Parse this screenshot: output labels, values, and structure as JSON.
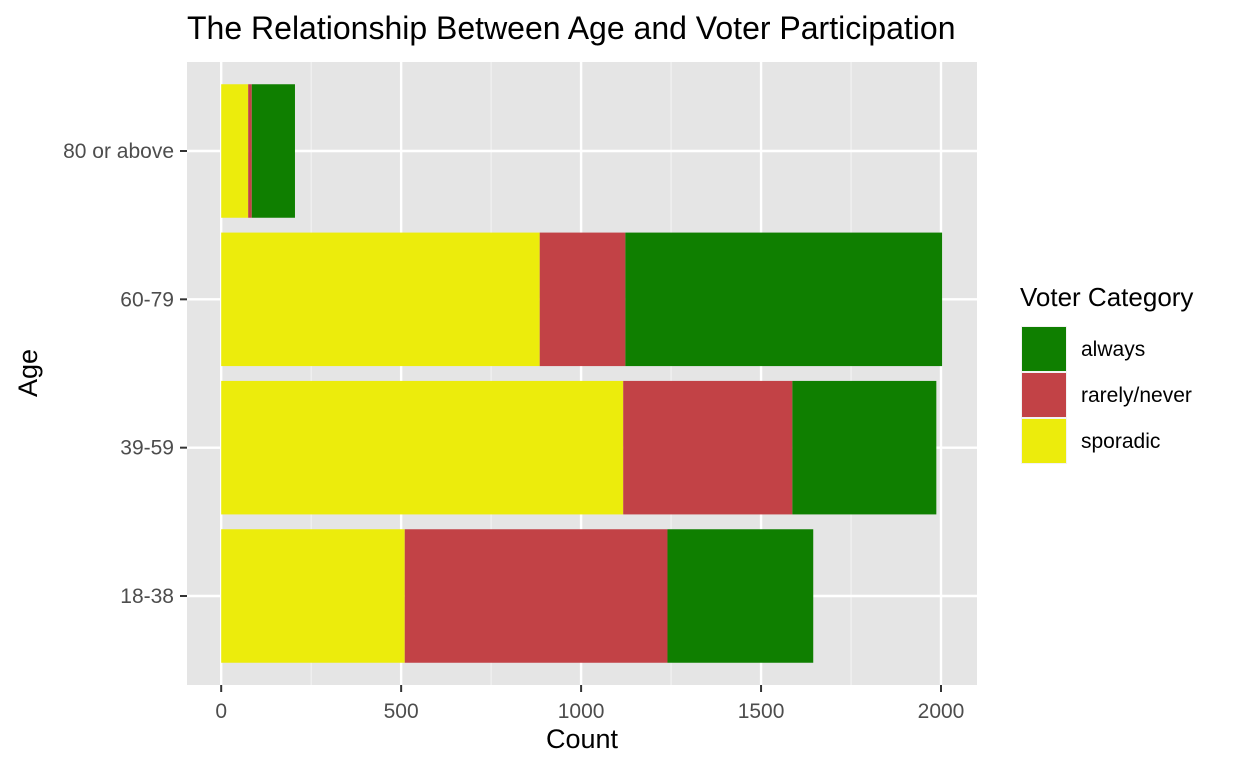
{
  "chart_data": {
    "type": "bar",
    "orientation": "horizontal",
    "stacked": true,
    "title": "The Relationship Between Age and Voter Participation",
    "xlabel": "Count",
    "ylabel": "Age",
    "categories": [
      "18-38",
      "39-59",
      "60-79",
      "80 or above"
    ],
    "series": [
      {
        "name": "sporadic",
        "color": "#ECEC0C",
        "values": [
          510,
          1117,
          885,
          75
        ]
      },
      {
        "name": "rarely/never",
        "color": "#C24246",
        "values": [
          730,
          470,
          238,
          10
        ]
      },
      {
        "name": "always",
        "color": "#0F7F00",
        "values": [
          405,
          400,
          880,
          120
        ]
      }
    ],
    "xlim": [
      -95,
      2100
    ],
    "x_ticks": [
      0,
      500,
      1000,
      1500,
      2000
    ],
    "grid": true,
    "legend": {
      "title": "Voter Category",
      "position": "right",
      "items": [
        "always",
        "rarely/never",
        "sporadic"
      ]
    },
    "colors": {
      "panel_background": "#E5E5E5",
      "grid_major": "#FFFFFF",
      "grid_minor": "#F2F2F2",
      "always": "#0F7F00",
      "rarely/never": "#C24246",
      "sporadic": "#ECEC0C"
    }
  }
}
